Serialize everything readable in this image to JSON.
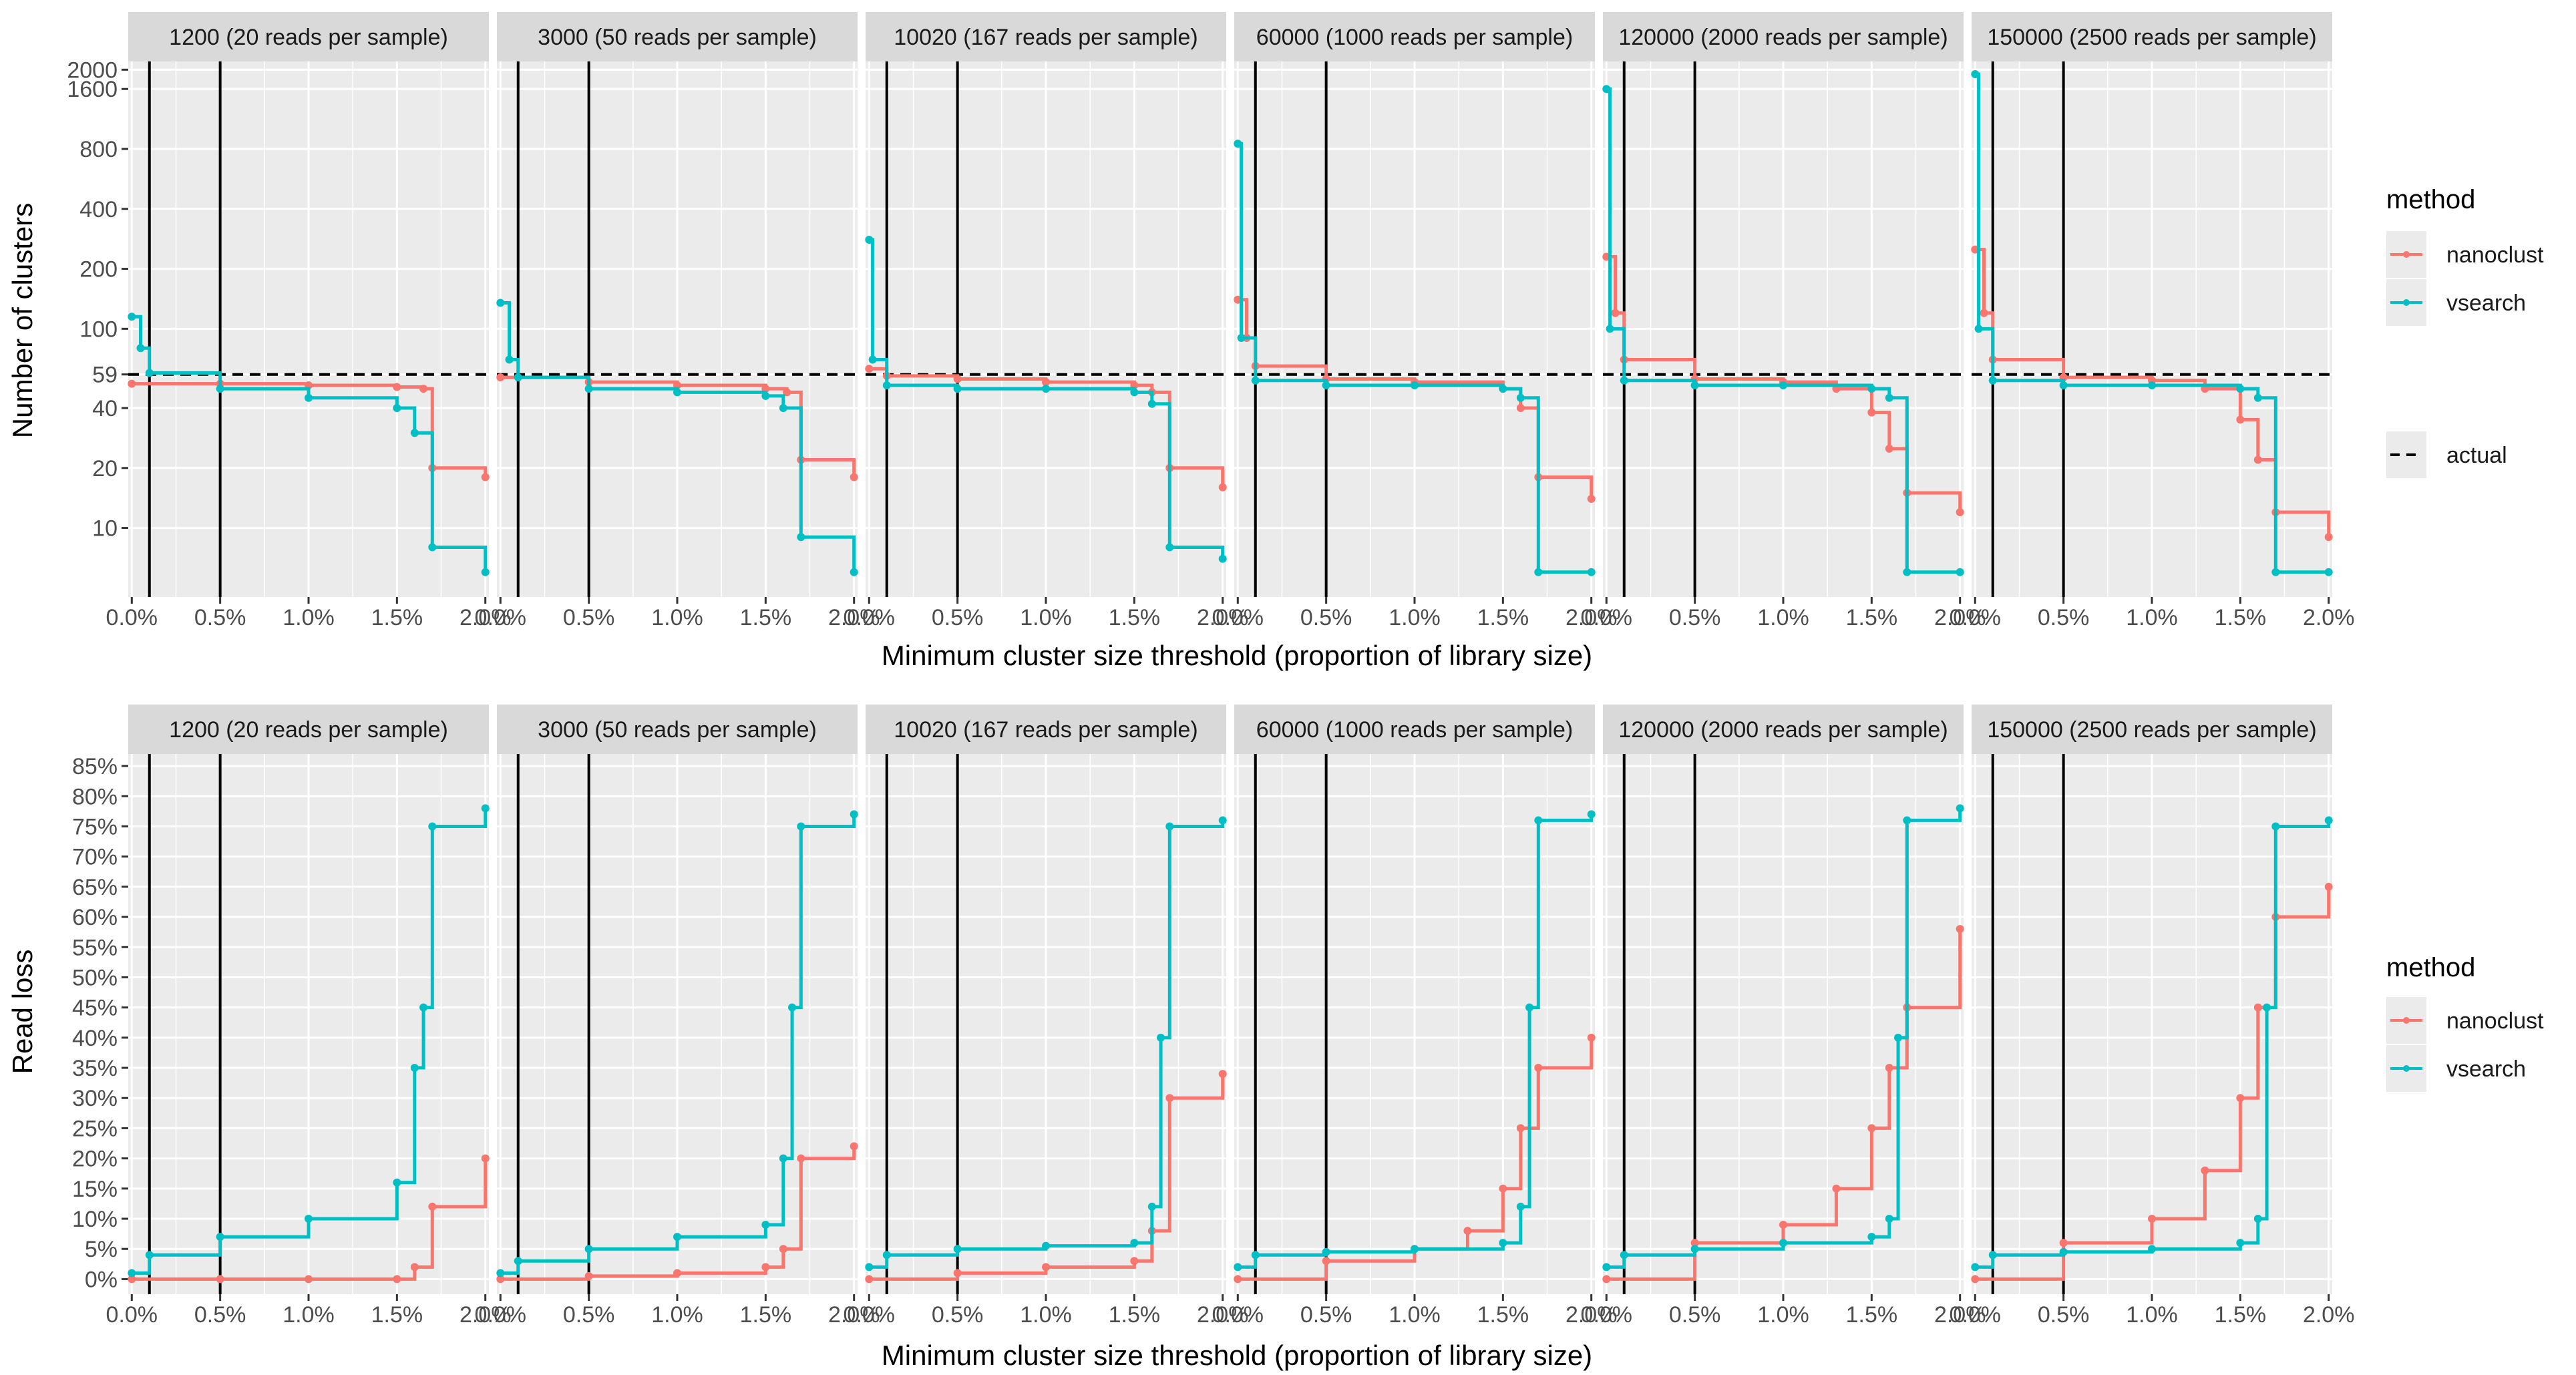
{
  "colors": {
    "nanoclust": "#F8766D",
    "vsearch": "#00BFC4",
    "panel_bg": "#EBEBEB",
    "strip_bg": "#D9D9D9",
    "grid": "#FFFFFF",
    "text": "#1A1A1A",
    "tick_text": "#4D4D4D"
  },
  "facets": [
    "1200 (20 reads per sample)",
    "3000 (50 reads per sample)",
    "10020 (167 reads per sample)",
    "60000 (1000 reads per sample)",
    "120000 (2000 reads per sample)",
    "150000 (2500 reads per sample)"
  ],
  "x_axis": {
    "title": "Minimum cluster size threshold (proportion of library size)",
    "ticks": [
      "0.0%",
      "0.5%",
      "1.0%",
      "1.5%",
      "2.0%"
    ],
    "tick_values": [
      0,
      0.5,
      1.0,
      1.5,
      2.0
    ],
    "range": [
      -0.02,
      2.02
    ]
  },
  "legend": {
    "title": "method",
    "items": [
      "nanoclust",
      "vsearch"
    ],
    "actual_label": "actual"
  },
  "chart_data": [
    {
      "type": "line",
      "title": "",
      "xlabel": "Minimum cluster size threshold (proportion of library size)",
      "ylabel": "Number of clusters",
      "y_scale": "log",
      "y_ticks": [
        "10",
        "20",
        "40",
        "59",
        "100",
        "200",
        "400",
        "800",
        "1600",
        "2000"
      ],
      "y_tick_values": [
        10,
        20,
        40,
        59,
        100,
        200,
        400,
        800,
        1600,
        2000
      ],
      "ylim": [
        4.5,
        2200
      ],
      "reference_hline": 59,
      "reference_vlines": [
        0.1,
        0.5
      ],
      "grid": true,
      "legend_position": "right",
      "facets": [
        {
          "label": "1200 (20 reads per sample)",
          "series": [
            {
              "name": "nanoclust",
              "x": [
                0.0,
                0.5,
                1.0,
                1.5,
                1.65,
                1.7,
                2.0
              ],
              "y": [
                53,
                53,
                52,
                51,
                50,
                20,
                18
              ]
            },
            {
              "name": "vsearch",
              "x": [
                0.0,
                0.05,
                0.1,
                0.5,
                1.0,
                1.5,
                1.6,
                1.7,
                2.0
              ],
              "y": [
                115,
                80,
                60,
                50,
                45,
                40,
                30,
                8,
                6
              ]
            }
          ]
        },
        {
          "label": "3000 (50 reads per sample)",
          "series": [
            {
              "name": "nanoclust",
              "x": [
                0.0,
                0.5,
                1.0,
                1.5,
                1.62,
                1.7,
                2.0
              ],
              "y": [
                57,
                54,
                52,
                50,
                48,
                22,
                18
              ]
            },
            {
              "name": "vsearch",
              "x": [
                0.0,
                0.05,
                0.1,
                0.5,
                1.0,
                1.5,
                1.6,
                1.7,
                2.0
              ],
              "y": [
                135,
                70,
                57,
                50,
                48,
                46,
                40,
                9,
                6
              ]
            }
          ]
        },
        {
          "label": "10020 (167 reads per sample)",
          "series": [
            {
              "name": "nanoclust",
              "x": [
                0.0,
                0.1,
                0.5,
                1.0,
                1.5,
                1.6,
                1.7,
                2.0
              ],
              "y": [
                63,
                58,
                56,
                54,
                52,
                48,
                20,
                16
              ]
            },
            {
              "name": "vsearch",
              "x": [
                0.0,
                0.02,
                0.1,
                0.5,
                1.0,
                1.5,
                1.6,
                1.7,
                2.0
              ],
              "y": [
                280,
                70,
                52,
                50,
                50,
                48,
                42,
                8,
                7
              ]
            }
          ]
        },
        {
          "label": "60000 (1000 reads per sample)",
          "series": [
            {
              "name": "nanoclust",
              "x": [
                0.0,
                0.05,
                0.1,
                0.5,
                1.0,
                1.5,
                1.6,
                1.7,
                2.0
              ],
              "y": [
                140,
                90,
                65,
                56,
                54,
                50,
                40,
                18,
                14
              ]
            },
            {
              "name": "vsearch",
              "x": [
                0.0,
                0.02,
                0.1,
                0.5,
                1.0,
                1.5,
                1.6,
                1.7,
                2.0
              ],
              "y": [
                850,
                90,
                55,
                52,
                52,
                50,
                45,
                6,
                6
              ]
            }
          ]
        },
        {
          "label": "120000 (2000 reads per sample)",
          "series": [
            {
              "name": "nanoclust",
              "x": [
                0.0,
                0.05,
                0.1,
                0.5,
                1.0,
                1.3,
                1.5,
                1.6,
                1.7,
                2.0
              ],
              "y": [
                230,
                120,
                70,
                56,
                54,
                50,
                38,
                25,
                15,
                12
              ]
            },
            {
              "name": "vsearch",
              "x": [
                0.0,
                0.02,
                0.1,
                0.5,
                1.0,
                1.5,
                1.6,
                1.7,
                2.0
              ],
              "y": [
                1600,
                100,
                55,
                52,
                52,
                50,
                45,
                6,
                6
              ]
            }
          ]
        },
        {
          "label": "150000 (2500 reads per sample)",
          "series": [
            {
              "name": "nanoclust",
              "x": [
                0.0,
                0.05,
                0.1,
                0.5,
                1.0,
                1.3,
                1.5,
                1.6,
                1.7,
                2.0
              ],
              "y": [
                250,
                120,
                70,
                57,
                55,
                50,
                35,
                22,
                12,
                9
              ]
            },
            {
              "name": "vsearch",
              "x": [
                0.0,
                0.02,
                0.1,
                0.5,
                1.0,
                1.5,
                1.6,
                1.7,
                2.0
              ],
              "y": [
                1900,
                100,
                55,
                52,
                52,
                50,
                45,
                6,
                6
              ]
            }
          ]
        }
      ]
    },
    {
      "type": "line",
      "title": "",
      "xlabel": "Minimum cluster size threshold (proportion of library size)",
      "ylabel": "Read loss",
      "y_ticks": [
        "0%",
        "5%",
        "10%",
        "15%",
        "20%",
        "25%",
        "30%",
        "35%",
        "40%",
        "45%",
        "50%",
        "55%",
        "60%",
        "65%",
        "70%",
        "75%",
        "80%",
        "85%"
      ],
      "y_tick_values": [
        0,
        5,
        10,
        15,
        20,
        25,
        30,
        35,
        40,
        45,
        50,
        55,
        60,
        65,
        70,
        75,
        80,
        85
      ],
      "ylim": [
        -2.5,
        87
      ],
      "reference_vlines": [
        0.1,
        0.5
      ],
      "grid": true,
      "legend_position": "right",
      "facets": [
        {
          "label": "1200 (20 reads per sample)",
          "series": [
            {
              "name": "nanoclust",
              "x": [
                0.0,
                0.5,
                1.0,
                1.5,
                1.6,
                1.7,
                2.0
              ],
              "y": [
                0,
                0,
                0,
                0,
                2,
                12,
                20
              ]
            },
            {
              "name": "vsearch",
              "x": [
                0.0,
                0.1,
                0.5,
                1.0,
                1.5,
                1.6,
                1.65,
                1.7,
                2.0
              ],
              "y": [
                1,
                4,
                7,
                10,
                16,
                35,
                45,
                75,
                78
              ]
            }
          ]
        },
        {
          "label": "3000 (50 reads per sample)",
          "series": [
            {
              "name": "nanoclust",
              "x": [
                0.0,
                0.5,
                1.0,
                1.5,
                1.6,
                1.7,
                2.0
              ],
              "y": [
                0,
                0.5,
                1,
                2,
                5,
                20,
                22
              ]
            },
            {
              "name": "vsearch",
              "x": [
                0.0,
                0.1,
                0.5,
                1.0,
                1.5,
                1.6,
                1.65,
                1.7,
                2.0
              ],
              "y": [
                1,
                3,
                5,
                7,
                9,
                20,
                45,
                75,
                77
              ]
            }
          ]
        },
        {
          "label": "10020 (167 reads per sample)",
          "series": [
            {
              "name": "nanoclust",
              "x": [
                0.0,
                0.5,
                1.0,
                1.5,
                1.6,
                1.7,
                2.0
              ],
              "y": [
                0,
                1,
                2,
                3,
                8,
                30,
                34
              ]
            },
            {
              "name": "vsearch",
              "x": [
                0.0,
                0.1,
                0.5,
                1.0,
                1.5,
                1.6,
                1.65,
                1.7,
                2.0
              ],
              "y": [
                2,
                4,
                5,
                5.5,
                6,
                12,
                40,
                75,
                76
              ]
            }
          ]
        },
        {
          "label": "60000 (1000 reads per sample)",
          "series": [
            {
              "name": "nanoclust",
              "x": [
                0.0,
                0.5,
                1.0,
                1.3,
                1.5,
                1.6,
                1.7,
                2.0
              ],
              "y": [
                0,
                3,
                5,
                8,
                15,
                25,
                35,
                40
              ]
            },
            {
              "name": "vsearch",
              "x": [
                0.0,
                0.1,
                0.5,
                1.0,
                1.5,
                1.6,
                1.65,
                1.7,
                2.0
              ],
              "y": [
                2,
                4,
                4.5,
                5,
                6,
                12,
                45,
                76,
                77
              ]
            }
          ]
        },
        {
          "label": "120000 (2000 reads per sample)",
          "series": [
            {
              "name": "nanoclust",
              "x": [
                0.0,
                0.5,
                1.0,
                1.3,
                1.5,
                1.6,
                1.7,
                2.0
              ],
              "y": [
                0,
                6,
                9,
                15,
                25,
                35,
                45,
                58
              ]
            },
            {
              "name": "vsearch",
              "x": [
                0.0,
                0.1,
                0.5,
                1.0,
                1.5,
                1.6,
                1.65,
                1.7,
                2.0
              ],
              "y": [
                2,
                4,
                5,
                6,
                7,
                10,
                40,
                76,
                78
              ]
            }
          ]
        },
        {
          "label": "150000 (2500 reads per sample)",
          "series": [
            {
              "name": "nanoclust",
              "x": [
                0.0,
                0.5,
                1.0,
                1.3,
                1.5,
                1.6,
                1.7,
                2.0
              ],
              "y": [
                0,
                6,
                10,
                18,
                30,
                45,
                60,
                65
              ]
            },
            {
              "name": "vsearch",
              "x": [
                0.0,
                0.1,
                0.5,
                1.0,
                1.5,
                1.6,
                1.65,
                1.7,
                2.0
              ],
              "y": [
                2,
                4,
                4.5,
                5,
                6,
                10,
                45,
                75,
                76
              ]
            }
          ]
        }
      ]
    }
  ]
}
